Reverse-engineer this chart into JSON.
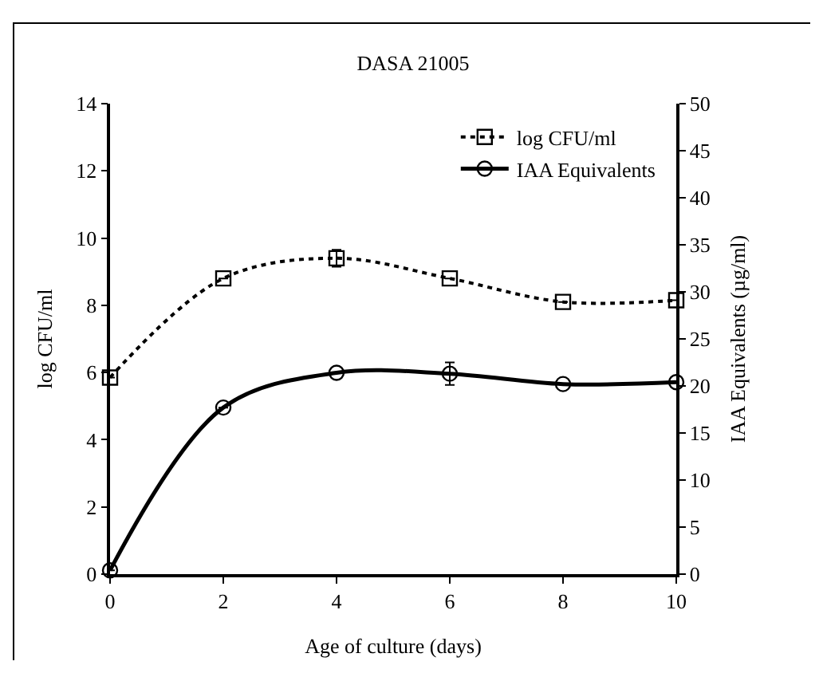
{
  "chart_data": {
    "type": "line",
    "title": "DASA 21005",
    "xlabel": "Age of culture (days)",
    "ylabel": "log CFU/ml",
    "y2label": "IAA Equivalents (µg/ml)",
    "x": [
      0,
      2,
      4,
      6,
      8,
      10
    ],
    "series": [
      {
        "name": "log CFU/ml",
        "color": "#000000",
        "values": [
          5.85,
          8.8,
          9.4,
          8.8,
          8.1,
          8.15
        ],
        "errors": [
          null,
          null,
          0.25,
          null,
          null,
          null
        ],
        "marker": "square",
        "line_style": "dotted"
      },
      {
        "name": "IAA Equivalents",
        "color": "#000000",
        "axis": "y2",
        "values": [
          0.4,
          17.7,
          21.4,
          21.3,
          20.2,
          20.4
        ],
        "errors": [
          null,
          null,
          null,
          1.2,
          null,
          null
        ],
        "marker": "circle",
        "line_style": "solid"
      }
    ],
    "xlim": [
      0,
      10
    ],
    "xticks": [
      0,
      2,
      4,
      6,
      8,
      10
    ],
    "ylim": [
      0,
      14
    ],
    "yticks": [
      0,
      2,
      4,
      6,
      8,
      10,
      12,
      14
    ],
    "y2lim": [
      0,
      50
    ],
    "y2ticks": [
      0,
      5,
      10,
      15,
      20,
      25,
      30,
      35,
      40,
      45,
      50
    ],
    "grid": false,
    "legend": "top right"
  }
}
